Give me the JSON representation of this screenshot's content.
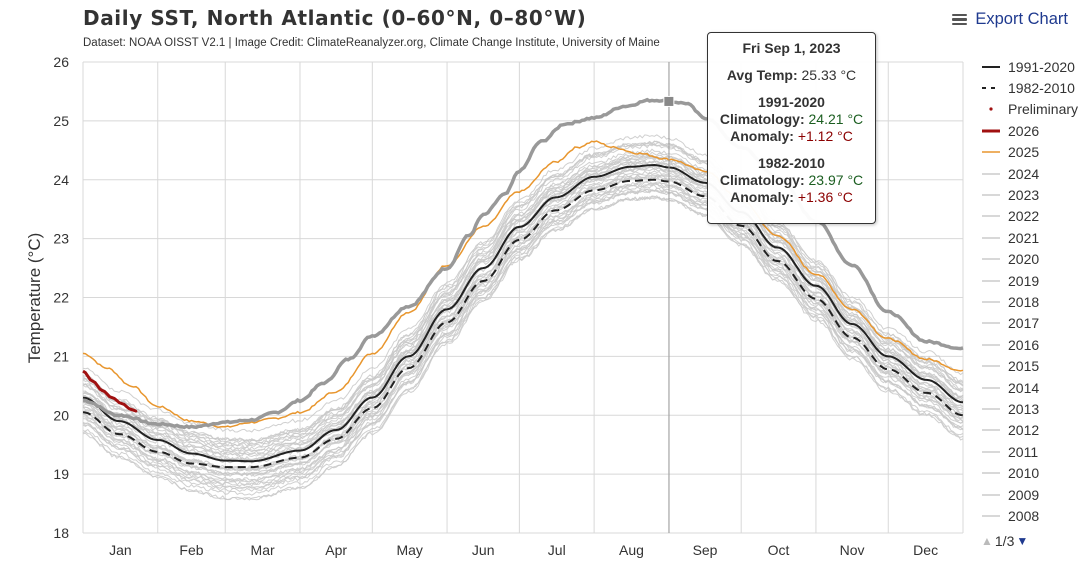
{
  "header": {
    "title": "Daily SST, North Atlantic (0–60°N, 0–80°W)",
    "subtitle": "Dataset: NOAA OISST V2.1 | Image Credit: ClimateReanalyzer.org, Climate Change Institute, University of Maine",
    "export_label": "Export Chart",
    "export_icon": "hamburger-menu-icon"
  },
  "tooltip": {
    "date": "Fri Sep 1, 2023",
    "avg_label": "Avg Temp:",
    "avg_value": "25.33 °C",
    "group1_title": "1991-2020",
    "group1_clim_label": "Climatology:",
    "group1_clim_value": "24.21 °C",
    "group1_anom_label": "Anomaly:",
    "group1_anom_value": "+1.12 °C",
    "group2_title": "1982-2010",
    "group2_clim_label": "Climatology:",
    "group2_clim_value": "23.97 °C",
    "group2_anom_label": "Anomaly:",
    "group2_anom_value": "+1.36 °C"
  },
  "legend": {
    "items": [
      {
        "label": "1991-2020",
        "style": "solid",
        "color": "#222222"
      },
      {
        "label": "1982-2010",
        "style": "dashed",
        "color": "#222222"
      },
      {
        "label": "Preliminary",
        "style": "dot",
        "color": "#a01010"
      },
      {
        "label": "2026",
        "style": "solid-thick",
        "color": "#a01010"
      },
      {
        "label": "2025",
        "style": "solid",
        "color": "#e8962e"
      },
      {
        "label": "2024",
        "style": "solid",
        "color": "#cccccc"
      },
      {
        "label": "2023",
        "style": "solid",
        "color": "#cccccc"
      },
      {
        "label": "2022",
        "style": "solid",
        "color": "#cccccc"
      },
      {
        "label": "2021",
        "style": "solid",
        "color": "#cccccc"
      },
      {
        "label": "2020",
        "style": "solid",
        "color": "#cccccc"
      },
      {
        "label": "2019",
        "style": "solid",
        "color": "#cccccc"
      },
      {
        "label": "2018",
        "style": "solid",
        "color": "#cccccc"
      },
      {
        "label": "2017",
        "style": "solid",
        "color": "#cccccc"
      },
      {
        "label": "2016",
        "style": "solid",
        "color": "#cccccc"
      },
      {
        "label": "2015",
        "style": "solid",
        "color": "#cccccc"
      },
      {
        "label": "2014",
        "style": "solid",
        "color": "#cccccc"
      },
      {
        "label": "2013",
        "style": "solid",
        "color": "#cccccc"
      },
      {
        "label": "2012",
        "style": "solid",
        "color": "#cccccc"
      },
      {
        "label": "2011",
        "style": "solid",
        "color": "#cccccc"
      },
      {
        "label": "2010",
        "style": "solid",
        "color": "#cccccc"
      },
      {
        "label": "2009",
        "style": "solid",
        "color": "#cccccc"
      },
      {
        "label": "2008",
        "style": "solid",
        "color": "#cccccc"
      }
    ],
    "pager": "1/3"
  },
  "chart_data": {
    "type": "line",
    "title": "Daily SST, North Atlantic (0–60°N, 0–80°W)",
    "xlabel": "",
    "ylabel": "Temperature (°C)",
    "ylim": [
      18,
      26
    ],
    "yticks": [
      18,
      19,
      20,
      21,
      22,
      23,
      24,
      25,
      26
    ],
    "xlim_day_of_year": [
      0,
      365
    ],
    "month_labels": [
      "Jan",
      "Feb",
      "Mar",
      "Apr",
      "May",
      "Jun",
      "Jul",
      "Aug",
      "Sep",
      "Oct",
      "Nov",
      "Dec"
    ],
    "month_starts": [
      0,
      31,
      59,
      90,
      120,
      151,
      181,
      212,
      243,
      273,
      304,
      334
    ],
    "grid": true,
    "legend_position": "right",
    "highlight": {
      "series": "2023",
      "day": 243,
      "value": 25.33,
      "label": "Fri Sep 1, 2023"
    },
    "series": [
      {
        "name": "1991-2020",
        "style": "solid",
        "color": "#222222",
        "x": [
          0,
          15,
          31,
          45,
          59,
          70,
          90,
          105,
          120,
          135,
          151,
          166,
          181,
          196,
          212,
          227,
          237,
          243,
          258,
          273,
          288,
          304,
          319,
          334,
          350,
          365
        ],
        "y": [
          20.3,
          19.9,
          19.58,
          19.35,
          19.23,
          19.22,
          19.4,
          19.75,
          20.3,
          21.0,
          21.8,
          22.5,
          23.2,
          23.7,
          24.05,
          24.22,
          24.25,
          24.21,
          23.95,
          23.45,
          22.85,
          22.2,
          21.55,
          21.0,
          20.6,
          20.22
        ]
      },
      {
        "name": "1982-2010",
        "style": "dashed",
        "color": "#222222",
        "x": [
          0,
          15,
          31,
          45,
          59,
          70,
          90,
          105,
          120,
          135,
          151,
          166,
          181,
          196,
          212,
          227,
          237,
          243,
          258,
          273,
          288,
          304,
          319,
          334,
          350,
          365
        ],
        "y": [
          20.05,
          19.68,
          19.38,
          19.18,
          19.12,
          19.12,
          19.28,
          19.6,
          20.12,
          20.8,
          21.58,
          22.28,
          22.98,
          23.48,
          23.82,
          23.98,
          24.0,
          23.97,
          23.72,
          23.22,
          22.62,
          21.98,
          21.32,
          20.78,
          20.38,
          20.0
        ]
      },
      {
        "name": "2025",
        "style": "solid",
        "color": "#e8962e",
        "x": [
          0,
          10,
          20,
          31,
          45,
          59,
          70,
          80,
          90,
          105,
          120,
          135,
          151,
          166,
          181,
          196,
          205,
          212,
          220,
          230,
          243,
          258,
          273,
          288,
          304,
          319,
          334,
          350,
          365
        ],
        "y": [
          21.05,
          20.8,
          20.5,
          20.15,
          19.9,
          19.8,
          19.88,
          19.95,
          20.05,
          20.4,
          21.05,
          21.75,
          22.55,
          23.2,
          23.8,
          24.3,
          24.55,
          24.65,
          24.55,
          24.45,
          24.35,
          24.15,
          23.65,
          23.05,
          22.4,
          21.8,
          21.3,
          20.95,
          20.75
        ]
      },
      {
        "name": "2026",
        "style": "solid-thick",
        "color": "#a01010",
        "preliminary": true,
        "x": [
          0,
          4,
          8,
          12,
          16,
          20,
          22
        ],
        "y": [
          20.75,
          20.58,
          20.42,
          20.3,
          20.2,
          20.1,
          20.07
        ]
      },
      {
        "name": "2023",
        "style": "solid-thick",
        "color": "#999999",
        "x": [
          0,
          15,
          31,
          45,
          59,
          70,
          80,
          90,
          100,
          110,
          120,
          135,
          151,
          160,
          166,
          175,
          181,
          190,
          200,
          212,
          225,
          235,
          240,
          243,
          250,
          258,
          273,
          288,
          304,
          319,
          334,
          350,
          365
        ],
        "y": [
          20.25,
          20.0,
          19.85,
          19.8,
          19.88,
          19.92,
          20.05,
          20.25,
          20.55,
          20.95,
          21.35,
          21.85,
          22.5,
          23.05,
          23.4,
          23.75,
          24.15,
          24.65,
          24.95,
          25.05,
          25.25,
          25.35,
          25.35,
          25.33,
          25.3,
          25.05,
          24.55,
          24.05,
          23.3,
          22.55,
          21.75,
          21.25,
          21.13
        ]
      }
    ],
    "background_series_note": "Gray lines for prior years 1982-2024 (thin, #cccccc)"
  }
}
